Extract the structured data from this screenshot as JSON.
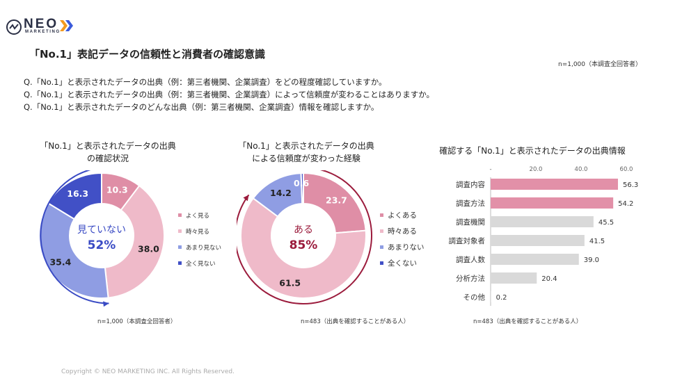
{
  "header": {
    "logo_text": "NEO",
    "logo_sub": "MARKETING",
    "title": "「No.1」表記データの信頼性と消費者の確認意識",
    "sample_note": "n=1,000（本調査全回答者）"
  },
  "questions": [
    "Q.「No.1」と表示されたデータの出典（例：第三者機関、企業調査）をどの程度確認していますか。",
    "Q.「No.1」と表示されたデータの出典（例：第三者機関、企業調査）によって信頼度が変わることはありますか。",
    "Q.「No.1」と表示されたデータのどんな出典（例：第三者機関、企業調査）情報を確認しますか。"
  ],
  "footer": {
    "copyright": "Copyright © NEO MARKETING INC. All Rights Reserved."
  },
  "colors": {
    "c1": "#df8ea6",
    "c2": "#efbac9",
    "c3": "#8f9de3",
    "c4": "#4150c6",
    "ring1": "#3a4bc4",
    "ring2": "#9b1b3c",
    "bar_hi": "#e290a8",
    "bar_lo": "#d9d9d9"
  },
  "chart_data": [
    {
      "type": "pie",
      "title_lines": [
        "「No.1」と表示されたデータの出典",
        "の確認状況"
      ],
      "categories": [
        "よく見る",
        "時々見る",
        "あまり見ない",
        "全く見ない"
      ],
      "values": [
        10.3,
        38.0,
        35.4,
        16.3
      ],
      "labels": [
        "10.3",
        "38.0",
        "35.4",
        "16.3"
      ],
      "center_label": "見ていない",
      "center_value": "52%",
      "legend": "right",
      "note": "n=1,000（本調査全回答者）"
    },
    {
      "type": "pie",
      "title_lines": [
        "「No.1」と表示されたデータの出典",
        "による信頼度が変わった経験"
      ],
      "categories": [
        "よくある",
        "時々ある",
        "あまりない",
        "全くない"
      ],
      "values": [
        23.7,
        61.5,
        14.2,
        0.6
      ],
      "labels": [
        "23.7",
        "61.5",
        "14.2",
        "0.6"
      ],
      "center_label": "ある",
      "center_value": "85%",
      "legend": "right",
      "note": "n=483（出典を確認することがある人）"
    },
    {
      "type": "bar",
      "orientation": "horizontal",
      "title": "確認する「No.1」と表示されたデータの出典情報",
      "categories": [
        "調査内容",
        "調査方法",
        "調査機関",
        "調査対象者",
        "調査人数",
        "分析方法",
        "その他"
      ],
      "values": [
        56.3,
        54.2,
        45.5,
        41.5,
        39.0,
        20.4,
        0.2
      ],
      "labels": [
        "56.3",
        "54.2",
        "45.5",
        "41.5",
        "39.0",
        "20.4",
        "0.2"
      ],
      "ticks": [
        "-",
        "20.0",
        "40.0",
        "60.0"
      ],
      "xlim": [
        0,
        60
      ],
      "grid": false,
      "note": "n=483（出典を確認することがある人）"
    }
  ]
}
